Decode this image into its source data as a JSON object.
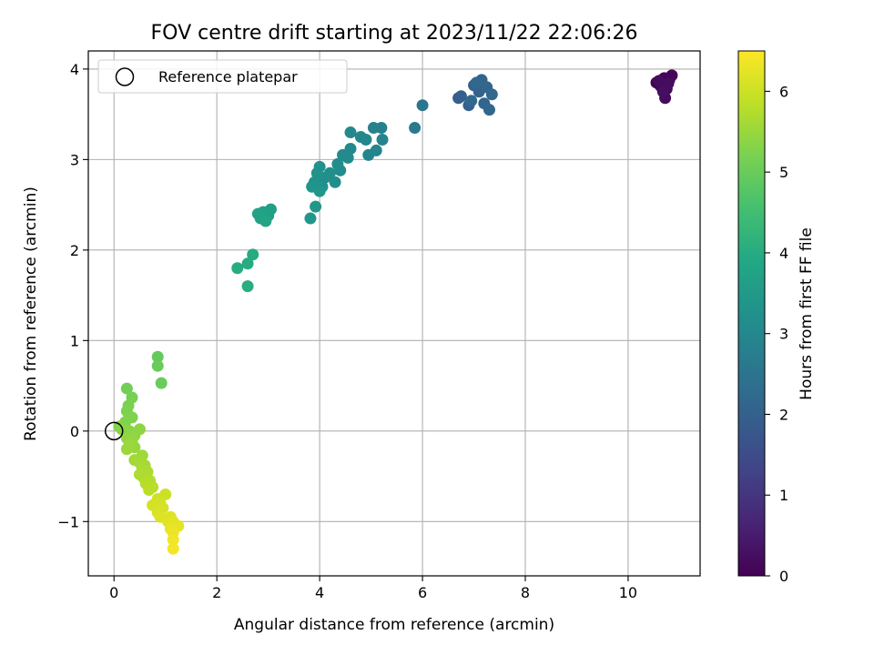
{
  "chart_data": {
    "type": "scatter",
    "title": "FOV centre drift starting at 2023/11/22 22:06:26",
    "xlabel": "Angular distance from reference (arcmin)",
    "ylabel": "Rotation from reference (arcmin)",
    "xlim": [
      -0.5,
      11.4
    ],
    "ylim": [
      -1.6,
      4.2
    ],
    "xticks": [
      0,
      2,
      4,
      6,
      8,
      10
    ],
    "yticks": [
      -1,
      0,
      1,
      2,
      3,
      4
    ],
    "xtick_labels": [
      "0",
      "2",
      "4",
      "6",
      "8",
      "10"
    ],
    "ytick_labels": [
      "−1",
      "0",
      "1",
      "2",
      "3",
      "4"
    ],
    "grid": true,
    "colormap": "viridis",
    "colorbar": {
      "label": "Hours from first FF file",
      "range": [
        0,
        6.5
      ],
      "ticks": [
        0,
        1,
        2,
        3,
        4,
        5,
        6
      ],
      "tick_labels": [
        "0",
        "1",
        "2",
        "3",
        "4",
        "5",
        "6"
      ]
    },
    "legend": {
      "position": "top-left",
      "entries": [
        "Reference platepar"
      ]
    },
    "reference_point": {
      "x": 0,
      "y": 0
    },
    "points": [
      {
        "x": 10.55,
        "y": 3.85,
        "c": 0.0
      },
      {
        "x": 10.62,
        "y": 3.82,
        "c": 0.03
      },
      {
        "x": 10.7,
        "y": 3.9,
        "c": 0.05
      },
      {
        "x": 10.8,
        "y": 3.88,
        "c": 0.08
      },
      {
        "x": 10.85,
        "y": 3.93,
        "c": 0.1
      },
      {
        "x": 10.65,
        "y": 3.8,
        "c": 0.12
      },
      {
        "x": 10.75,
        "y": 3.78,
        "c": 0.15
      },
      {
        "x": 10.72,
        "y": 3.68,
        "c": 0.18
      },
      {
        "x": 10.6,
        "y": 3.87,
        "c": 0.2
      },
      {
        "x": 10.78,
        "y": 3.84,
        "c": 0.22
      },
      {
        "x": 10.68,
        "y": 3.75,
        "c": 0.25
      },
      {
        "x": 6.7,
        "y": 3.68,
        "c": 1.95
      },
      {
        "x": 6.75,
        "y": 3.7,
        "c": 1.98
      },
      {
        "x": 6.9,
        "y": 3.6,
        "c": 2.0
      },
      {
        "x": 7.0,
        "y": 3.82,
        "c": 2.02
      },
      {
        "x": 7.1,
        "y": 3.75,
        "c": 2.05
      },
      {
        "x": 7.15,
        "y": 3.88,
        "c": 2.08
      },
      {
        "x": 7.2,
        "y": 3.62,
        "c": 2.1
      },
      {
        "x": 7.25,
        "y": 3.8,
        "c": 2.12
      },
      {
        "x": 7.3,
        "y": 3.55,
        "c": 2.15
      },
      {
        "x": 7.35,
        "y": 3.72,
        "c": 2.18
      },
      {
        "x": 6.95,
        "y": 3.65,
        "c": 2.2
      },
      {
        "x": 7.05,
        "y": 3.85,
        "c": 2.22
      },
      {
        "x": 6.0,
        "y": 3.6,
        "c": 2.55
      },
      {
        "x": 5.85,
        "y": 3.35,
        "c": 2.65
      },
      {
        "x": 5.2,
        "y": 3.35,
        "c": 2.8
      },
      {
        "x": 5.05,
        "y": 3.35,
        "c": 2.85
      },
      {
        "x": 5.22,
        "y": 3.22,
        "c": 2.88
      },
      {
        "x": 5.1,
        "y": 3.1,
        "c": 2.92
      },
      {
        "x": 4.95,
        "y": 3.05,
        "c": 2.95
      },
      {
        "x": 4.8,
        "y": 3.25,
        "c": 2.98
      },
      {
        "x": 4.9,
        "y": 3.22,
        "c": 3.0
      },
      {
        "x": 4.6,
        "y": 3.3,
        "c": 3.02
      },
      {
        "x": 4.6,
        "y": 3.12,
        "c": 3.05
      },
      {
        "x": 4.45,
        "y": 3.05,
        "c": 3.08
      },
      {
        "x": 4.55,
        "y": 3.02,
        "c": 3.1
      },
      {
        "x": 4.35,
        "y": 2.95,
        "c": 3.12
      },
      {
        "x": 4.4,
        "y": 2.88,
        "c": 3.15
      },
      {
        "x": 4.3,
        "y": 2.75,
        "c": 3.18
      },
      {
        "x": 4.2,
        "y": 2.85,
        "c": 3.2
      },
      {
        "x": 4.1,
        "y": 2.8,
        "c": 3.22
      },
      {
        "x": 4.05,
        "y": 2.7,
        "c": 3.25
      },
      {
        "x": 4.0,
        "y": 2.92,
        "c": 3.28
      },
      {
        "x": 3.95,
        "y": 2.85,
        "c": 3.3
      },
      {
        "x": 3.9,
        "y": 2.75,
        "c": 3.32
      },
      {
        "x": 3.85,
        "y": 2.7,
        "c": 3.35
      },
      {
        "x": 4.0,
        "y": 2.65,
        "c": 3.38
      },
      {
        "x": 3.92,
        "y": 2.48,
        "c": 3.4
      },
      {
        "x": 3.82,
        "y": 2.35,
        "c": 3.42
      },
      {
        "x": 3.05,
        "y": 2.45,
        "c": 3.65
      },
      {
        "x": 3.0,
        "y": 2.38,
        "c": 3.68
      },
      {
        "x": 2.9,
        "y": 2.42,
        "c": 3.7
      },
      {
        "x": 2.85,
        "y": 2.35,
        "c": 3.72
      },
      {
        "x": 2.8,
        "y": 2.4,
        "c": 3.75
      },
      {
        "x": 2.95,
        "y": 2.32,
        "c": 3.78
      },
      {
        "x": 2.7,
        "y": 1.95,
        "c": 3.95
      },
      {
        "x": 2.6,
        "y": 1.85,
        "c": 3.98
      },
      {
        "x": 2.4,
        "y": 1.8,
        "c": 4.0
      },
      {
        "x": 2.6,
        "y": 1.6,
        "c": 4.05
      },
      {
        "x": 0.85,
        "y": 0.82,
        "c": 4.95
      },
      {
        "x": 0.85,
        "y": 0.72,
        "c": 4.98
      },
      {
        "x": 0.92,
        "y": 0.53,
        "c": 5.0
      },
      {
        "x": 0.25,
        "y": 0.47,
        "c": 5.1
      },
      {
        "x": 0.35,
        "y": 0.37,
        "c": 5.15
      },
      {
        "x": 0.28,
        "y": 0.28,
        "c": 5.2
      },
      {
        "x": 0.25,
        "y": 0.22,
        "c": 5.22
      },
      {
        "x": 0.35,
        "y": 0.15,
        "c": 5.25
      },
      {
        "x": 0.22,
        "y": 0.1,
        "c": 5.28
      },
      {
        "x": 0.1,
        "y": 0.05,
        "c": 5.3
      },
      {
        "x": 0.15,
        "y": 0.02,
        "c": 5.32
      },
      {
        "x": 0.3,
        "y": 0.0,
        "c": 5.35
      },
      {
        "x": 0.5,
        "y": 0.02,
        "c": 5.38
      },
      {
        "x": 0.4,
        "y": -0.05,
        "c": 5.4
      },
      {
        "x": 0.25,
        "y": -0.08,
        "c": 5.42
      },
      {
        "x": 0.35,
        "y": -0.12,
        "c": 5.45
      },
      {
        "x": 0.4,
        "y": -0.18,
        "c": 5.48
      },
      {
        "x": 0.25,
        "y": -0.2,
        "c": 5.5
      },
      {
        "x": 0.3,
        "y": -0.15,
        "c": 5.52
      },
      {
        "x": 0.55,
        "y": -0.27,
        "c": 5.55
      },
      {
        "x": 0.4,
        "y": -0.32,
        "c": 5.58
      },
      {
        "x": 0.5,
        "y": -0.35,
        "c": 5.6
      },
      {
        "x": 0.6,
        "y": -0.38,
        "c": 5.62
      },
      {
        "x": 0.55,
        "y": -0.42,
        "c": 5.65
      },
      {
        "x": 0.65,
        "y": -0.45,
        "c": 5.68
      },
      {
        "x": 0.5,
        "y": -0.48,
        "c": 5.7
      },
      {
        "x": 0.58,
        "y": -0.52,
        "c": 5.72
      },
      {
        "x": 0.7,
        "y": -0.55,
        "c": 5.75
      },
      {
        "x": 0.62,
        "y": -0.58,
        "c": 5.78
      },
      {
        "x": 0.75,
        "y": -0.62,
        "c": 5.8
      },
      {
        "x": 0.68,
        "y": -0.65,
        "c": 5.82
      },
      {
        "x": 1.0,
        "y": -0.7,
        "c": 6.0
      },
      {
        "x": 0.85,
        "y": -0.75,
        "c": 6.02
      },
      {
        "x": 0.9,
        "y": -0.8,
        "c": 6.05
      },
      {
        "x": 0.75,
        "y": -0.82,
        "c": 6.08
      },
      {
        "x": 0.95,
        "y": -0.85,
        "c": 6.1
      },
      {
        "x": 0.85,
        "y": -0.9,
        "c": 6.12
      },
      {
        "x": 0.9,
        "y": -0.95,
        "c": 6.15
      },
      {
        "x": 1.1,
        "y": -0.95,
        "c": 6.18
      },
      {
        "x": 1.05,
        "y": -1.0,
        "c": 6.2
      },
      {
        "x": 1.15,
        "y": -1.0,
        "c": 6.22
      },
      {
        "x": 1.25,
        "y": -1.05,
        "c": 6.25
      },
      {
        "x": 1.1,
        "y": -1.08,
        "c": 6.28
      },
      {
        "x": 1.15,
        "y": -1.12,
        "c": 6.32
      },
      {
        "x": 1.15,
        "y": -1.2,
        "c": 6.38
      },
      {
        "x": 1.15,
        "y": -1.3,
        "c": 6.42
      }
    ]
  }
}
